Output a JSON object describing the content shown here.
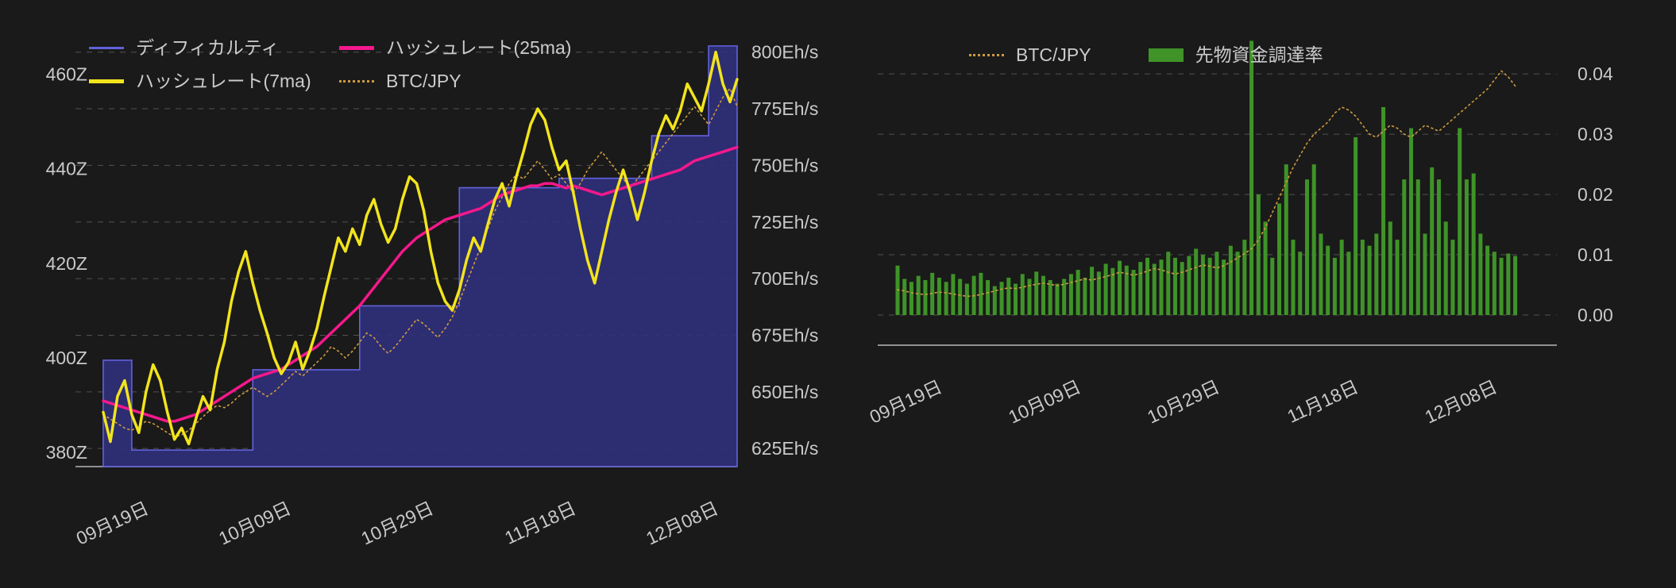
{
  "theme": {
    "background": "#1a1a1a",
    "text_color": "#c9c9c9",
    "grid_color": "#525252",
    "axis_color": "#8f8f8f"
  },
  "chart_data": [
    {
      "type": "mixed",
      "title": "",
      "x_axis": {
        "axis_days": 90,
        "ticks": [
          {
            "label": "09月19日",
            "day": 5
          },
          {
            "label": "10月09日",
            "day": 25
          },
          {
            "label": "10月29日",
            "day": 45
          },
          {
            "label": "11月18日",
            "day": 65
          },
          {
            "label": "12月08日",
            "day": 85
          }
        ]
      },
      "left_axis": {
        "min": 377,
        "max": 469,
        "ticks": [
          {
            "label": "460Z",
            "value": 460
          },
          {
            "label": "440Z",
            "value": 440
          },
          {
            "label": "420Z",
            "value": 420
          },
          {
            "label": "400Z",
            "value": 400
          },
          {
            "label": "380Z",
            "value": 380
          }
        ]
      },
      "right_axis": {
        "min": 617,
        "max": 809,
        "ticks": [
          {
            "label": "800Eh/s",
            "value": 800
          },
          {
            "label": "775Eh/s",
            "value": 775
          },
          {
            "label": "750Eh/s",
            "value": 750
          },
          {
            "label": "725Eh/s",
            "value": 725
          },
          {
            "label": "700Eh/s",
            "value": 700
          },
          {
            "label": "675Eh/s",
            "value": 675
          },
          {
            "label": "650Eh/s",
            "value": 650
          },
          {
            "label": "625Eh/s",
            "value": 625
          }
        ]
      },
      "series": [
        {
          "name": "ディフィカルティ",
          "type": "step-area",
          "axis": "left",
          "color": "#6262dd",
          "fill": "#30307c",
          "fill_opacity": 0.9,
          "width": 1.6,
          "steps": [
            {
              "start_day": 0,
              "end_day": 3,
              "value": 399.5
            },
            {
              "start_day": 4,
              "end_day": 20,
              "value": 380.5
            },
            {
              "start_day": 21,
              "end_day": 35,
              "value": 397.5
            },
            {
              "start_day": 36,
              "end_day": 49,
              "value": 411
            },
            {
              "start_day": 50,
              "end_day": 63,
              "value": 436
            },
            {
              "start_day": 64,
              "end_day": 76,
              "value": 438
            },
            {
              "start_day": 77,
              "end_day": 84,
              "value": 447
            },
            {
              "start_day": 85,
              "end_day": 89,
              "value": 466
            }
          ]
        },
        {
          "name": "BTC/JPY",
          "type": "line",
          "line_style": "dotted",
          "axis": "right",
          "color": "#cd9a3e",
          "width": 1.6,
          "values": [
            640,
            638,
            636,
            634,
            633,
            635,
            637,
            636,
            634,
            632,
            630,
            631,
            633,
            636,
            639,
            642,
            644,
            643,
            645,
            648,
            650,
            652,
            650,
            648,
            650,
            653,
            656,
            659,
            657,
            660,
            663,
            666,
            670,
            668,
            665,
            668,
            672,
            676,
            674,
            670,
            667,
            670,
            674,
            678,
            682,
            680,
            677,
            674,
            678,
            683,
            690,
            698,
            706,
            714,
            722,
            730,
            736,
            742,
            746,
            744,
            748,
            752,
            748,
            744,
            746,
            742,
            738,
            742,
            748,
            752,
            756,
            752,
            748,
            744,
            740,
            744,
            748,
            752,
            756,
            760,
            764,
            768,
            772,
            776,
            772,
            768,
            774,
            780,
            784,
            776
          ]
        },
        {
          "name": "ハッシュレート(25ma)",
          "type": "line",
          "line_style": "solid",
          "axis": "right",
          "color": "#f5188c",
          "width": 3.5,
          "values": [
            646,
            645,
            644,
            643,
            642,
            641,
            640,
            639,
            638,
            637,
            637,
            638,
            639,
            640,
            642,
            644,
            646,
            648,
            650,
            652,
            654,
            656,
            657,
            658,
            659,
            660,
            662,
            664,
            666,
            668,
            670,
            673,
            676,
            679,
            682,
            685,
            688,
            692,
            696,
            700,
            704,
            708,
            712,
            715,
            718,
            720,
            722,
            724,
            726,
            727,
            728,
            729,
            730,
            731,
            733,
            735,
            737,
            738,
            739,
            740,
            741,
            741,
            742,
            742,
            741,
            740,
            741,
            740,
            739,
            738,
            737,
            738,
            739,
            740,
            741,
            742,
            743,
            744,
            745,
            746,
            747,
            748,
            750,
            752,
            753,
            754,
            755,
            756,
            757,
            758
          ]
        },
        {
          "name": "ハッシュレート(7ma)",
          "type": "line",
          "line_style": "solid",
          "axis": "right",
          "color": "#f2e41c",
          "width": 3.5,
          "values": [
            641,
            628,
            648,
            655,
            640,
            632,
            650,
            662,
            655,
            641,
            629,
            634,
            627,
            638,
            648,
            642,
            660,
            672,
            690,
            703,
            712,
            698,
            686,
            676,
            665,
            658,
            663,
            672,
            660,
            668,
            678,
            692,
            705,
            718,
            712,
            722,
            715,
            728,
            735,
            724,
            716,
            722,
            735,
            745,
            742,
            730,
            712,
            698,
            690,
            686,
            695,
            708,
            718,
            712,
            724,
            735,
            742,
            732,
            745,
            756,
            768,
            775,
            770,
            758,
            748,
            752,
            738,
            722,
            708,
            698,
            712,
            726,
            738,
            748,
            738,
            726,
            738,
            752,
            764,
            772,
            766,
            774,
            786,
            780,
            774,
            786,
            800,
            786,
            778,
            788
          ]
        }
      ],
      "legend_order": [
        0,
        2,
        3,
        1
      ]
    },
    {
      "type": "mixed",
      "title": "",
      "x_axis": {
        "axis_days": 96,
        "ticks": [
          {
            "label": "09月19日",
            "day": 5
          },
          {
            "label": "10月09日",
            "day": 25
          },
          {
            "label": "10月29日",
            "day": 45
          },
          {
            "label": "11月18日",
            "day": 65
          },
          {
            "label": "12月08日",
            "day": 85
          }
        ]
      },
      "right_axis": {
        "min": -0.005,
        "max": 0.047,
        "ticks": [
          {
            "label": "0.04",
            "value": 0.04
          },
          {
            "label": "0.03",
            "value": 0.03
          },
          {
            "label": "0.02",
            "value": 0.02
          },
          {
            "label": "0.01",
            "value": 0.01
          },
          {
            "label": "0.00",
            "value": 0.0
          }
        ]
      },
      "series": [
        {
          "name": "先物資金調達率",
          "type": "bar",
          "axis": "right",
          "color": "#3f9328",
          "values": [
            0.0082,
            0.006,
            0.0055,
            0.0065,
            0.0058,
            0.007,
            0.0062,
            0.0055,
            0.0068,
            0.006,
            0.0052,
            0.0065,
            0.007,
            0.0058,
            0.0048,
            0.0055,
            0.0062,
            0.0052,
            0.0068,
            0.006,
            0.0072,
            0.0065,
            0.0058,
            0.0052,
            0.006,
            0.0068,
            0.0075,
            0.0062,
            0.008,
            0.0072,
            0.0085,
            0.0078,
            0.009,
            0.0082,
            0.0075,
            0.0088,
            0.0095,
            0.0085,
            0.0092,
            0.0105,
            0.0095,
            0.0088,
            0.0098,
            0.011,
            0.01,
            0.0095,
            0.0105,
            0.0092,
            0.0115,
            0.0105,
            0.0125,
            0.0455,
            0.02,
            0.0155,
            0.0095,
            0.0185,
            0.025,
            0.0125,
            0.0105,
            0.0225,
            0.025,
            0.0135,
            0.0115,
            0.0095,
            0.0125,
            0.0105,
            0.0295,
            0.0125,
            0.0115,
            0.0135,
            0.0345,
            0.0155,
            0.0125,
            0.0225,
            0.031,
            0.0225,
            0.0135,
            0.0245,
            0.0225,
            0.0155,
            0.0125,
            0.031,
            0.0225,
            0.0235,
            0.0135,
            0.0115,
            0.0105,
            0.0095,
            0.0102,
            0.0098
          ]
        },
        {
          "name": "BTC/JPY",
          "type": "line",
          "line_style": "dotted",
          "axis": "right",
          "color": "#cd9a3e",
          "width": 1.6,
          "values": [
            0.0042,
            0.004,
            0.0037,
            0.0035,
            0.0034,
            0.0036,
            0.0038,
            0.0037,
            0.0035,
            0.0033,
            0.0031,
            0.0032,
            0.0034,
            0.0037,
            0.004,
            0.0043,
            0.0045,
            0.0044,
            0.0046,
            0.0049,
            0.0051,
            0.0053,
            0.0051,
            0.0049,
            0.0051,
            0.0054,
            0.0057,
            0.006,
            0.0058,
            0.0061,
            0.0064,
            0.0067,
            0.0071,
            0.0069,
            0.0066,
            0.0069,
            0.0073,
            0.0077,
            0.0075,
            0.0071,
            0.0068,
            0.0071,
            0.0075,
            0.0079,
            0.0083,
            0.0081,
            0.0078,
            0.0082,
            0.0088,
            0.0095,
            0.0102,
            0.011,
            0.0125,
            0.0145,
            0.017,
            0.0195,
            0.022,
            0.0245,
            0.0265,
            0.0285,
            0.03,
            0.031,
            0.032,
            0.0335,
            0.0345,
            0.034,
            0.033,
            0.0315,
            0.03,
            0.0295,
            0.0305,
            0.0315,
            0.031,
            0.03,
            0.0295,
            0.0305,
            0.0315,
            0.031,
            0.0305,
            0.0315,
            0.0325,
            0.0335,
            0.0345,
            0.0355,
            0.0365,
            0.0375,
            0.039,
            0.0405,
            0.0395,
            0.038
          ]
        }
      ],
      "legend_order": [
        1,
        0
      ]
    }
  ]
}
